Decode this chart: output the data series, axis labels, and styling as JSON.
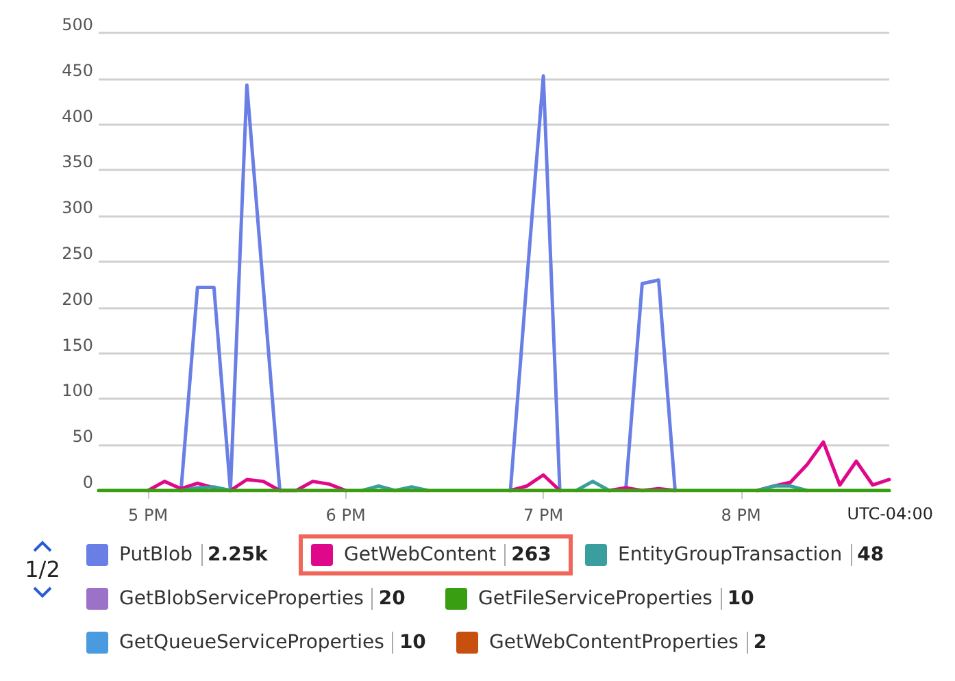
{
  "chart_data": {
    "type": "line",
    "categories": [
      null,
      null,
      null,
      "5 PM",
      null,
      null,
      null,
      null,
      null,
      null,
      null,
      null,
      null,
      null,
      null,
      "6 PM",
      null,
      null,
      null,
      null,
      null,
      null,
      null,
      null,
      null,
      null,
      null,
      "7 PM",
      null,
      null,
      null,
      null,
      null,
      null,
      null,
      null,
      null,
      null,
      null,
      "8 PM",
      null,
      null,
      null,
      null,
      null,
      null,
      null,
      null,
      null
    ],
    "series": [
      {
        "name": "PutBlob",
        "color": "#6a7fe6",
        "values": [
          null,
          null,
          null,
          null,
          null,
          0,
          222,
          222,
          0,
          443,
          221,
          0,
          null,
          null,
          null,
          null,
          null,
          null,
          null,
          null,
          null,
          null,
          null,
          null,
          null,
          0,
          230,
          453,
          0,
          null,
          null,
          null,
          0,
          226,
          230,
          0,
          null,
          null,
          null,
          null,
          null,
          null,
          null,
          null,
          null,
          null,
          null,
          null,
          null
        ]
      },
      {
        "name": "GetWebContent",
        "color": "#e0088a",
        "values": [
          null,
          null,
          null,
          0,
          10,
          2,
          8,
          3,
          0,
          12,
          10,
          0,
          0,
          10,
          7,
          0,
          null,
          null,
          null,
          null,
          null,
          null,
          null,
          null,
          null,
          0,
          5,
          17,
          0,
          null,
          null,
          0,
          3,
          0,
          2,
          0,
          null,
          null,
          null,
          null,
          0,
          5,
          9,
          28,
          53,
          6,
          32,
          6,
          12
        ]
      },
      {
        "name": "EntityGroupTransaction",
        "color": "#3a9e9e",
        "values": [
          null,
          null,
          null,
          null,
          null,
          0,
          3,
          4,
          0,
          null,
          null,
          null,
          null,
          null,
          null,
          null,
          0,
          5,
          0,
          4,
          0,
          null,
          null,
          null,
          null,
          null,
          null,
          null,
          null,
          0,
          10,
          0,
          null,
          null,
          null,
          null,
          null,
          null,
          null,
          null,
          0,
          5,
          5,
          0,
          null,
          null,
          null,
          null,
          null
        ]
      },
      {
        "name": "GetBlobServiceProperties",
        "color": "#9b72c8",
        "values": [
          null,
          null,
          null,
          null,
          null,
          null,
          null,
          null,
          null,
          null,
          null,
          null,
          null,
          null,
          null,
          null,
          null,
          null,
          null,
          null,
          null,
          null,
          null,
          null,
          null,
          null,
          null,
          null,
          null,
          null,
          null,
          null,
          null,
          null,
          null,
          null,
          null,
          null,
          null,
          null,
          null,
          null,
          null,
          null,
          null,
          null,
          null,
          null,
          null
        ]
      },
      {
        "name": "GetFileServiceProperties",
        "color": "#3a9e12",
        "values": [
          0,
          0,
          0,
          0,
          0,
          0,
          0,
          0,
          0,
          0,
          0,
          0,
          0,
          0,
          0,
          0,
          0,
          0,
          0,
          0,
          0,
          0,
          0,
          0,
          0,
          0,
          0,
          0,
          0,
          0,
          0,
          0,
          0,
          0,
          0,
          0,
          0,
          0,
          0,
          0,
          0,
          0,
          0,
          0,
          0,
          0,
          0,
          0,
          0
        ]
      },
      {
        "name": "GetQueueServiceProperties",
        "color": "#4a9ae0",
        "values": [
          null,
          null,
          null,
          null,
          null,
          null,
          null,
          null,
          null,
          null,
          null,
          null,
          null,
          null,
          null,
          null,
          null,
          null,
          null,
          null,
          null,
          null,
          null,
          null,
          null,
          null,
          null,
          null,
          null,
          null,
          null,
          null,
          null,
          null,
          null,
          null,
          null,
          null,
          null,
          null,
          null,
          null,
          null,
          null,
          null,
          null,
          null,
          null,
          null
        ]
      },
      {
        "name": "GetWebContentProperties",
        "color": "#c8500f",
        "values": [
          null,
          null,
          null,
          null,
          null,
          null,
          null,
          null,
          null,
          null,
          null,
          null,
          null,
          null,
          null,
          null,
          null,
          null,
          null,
          null,
          null,
          null,
          null,
          null,
          null,
          null,
          null,
          null,
          null,
          null,
          null,
          null,
          null,
          null,
          null,
          null,
          null,
          null,
          null,
          null,
          null,
          null,
          null,
          null,
          null,
          null,
          null,
          null,
          null
        ]
      }
    ],
    "ylim": [
      0,
      500
    ],
    "yticks": [
      0,
      50,
      100,
      150,
      200,
      250,
      300,
      350,
      400,
      450,
      500
    ],
    "grid": "y",
    "legend": "bottom",
    "marker": "none",
    "line_style": "solid",
    "annotations": [
      "2.25k",
      "263",
      "48",
      "20",
      "10",
      "10",
      "2",
      "UTC-04:00",
      "1/2"
    ]
  }
}
